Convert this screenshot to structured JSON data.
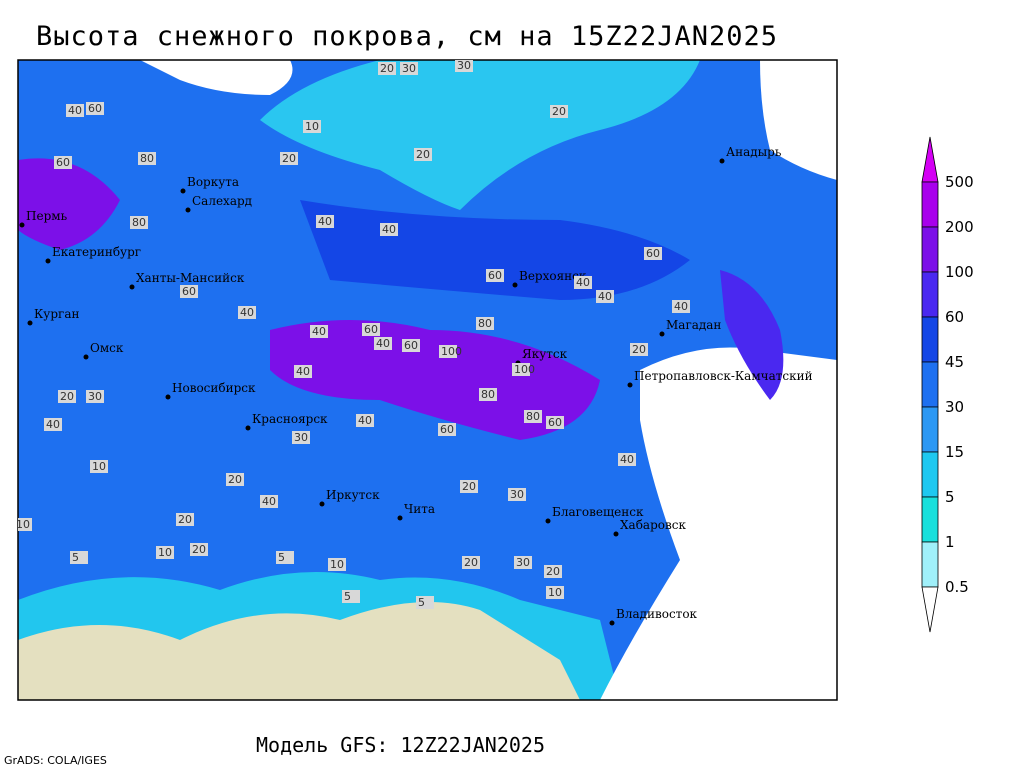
{
  "header": {
    "title": "Высота снежного покрова, см на 15Z22JAN2025"
  },
  "footer": {
    "model": "Модель GFS: 12Z22JAN2025",
    "credit": "GrADS: COLA/IGES"
  },
  "legend": {
    "levels": [
      500,
      200,
      100,
      60,
      45,
      30,
      15,
      5,
      1,
      0.5
    ],
    "colors": [
      "#d400f4",
      "#a800ec",
      "#7c10e8",
      "#4a28f0",
      "#1446e6",
      "#1e70f0",
      "#2c98f4",
      "#1ec8f0",
      "#18e0dc",
      "#a0f0fa",
      "#ffffff"
    ]
  },
  "map": {
    "cities": [
      "Воркута",
      "Салехард",
      "Пермь",
      "Екатеринбург",
      "Ханты-Мансийск",
      "Курган",
      "Омск",
      "Новосибирск",
      "Красноярск",
      "Иркутск",
      "Чита",
      "Верхоянск",
      "Якутск",
      "Магадан",
      "Анадырь",
      "Петропавловск-Камчатский",
      "Благовещенск",
      "Хабаровск",
      "Владивосток"
    ],
    "contour_labels": [
      "20",
      "30",
      "30",
      "20",
      "10",
      "20",
      "20",
      "40",
      "60",
      "80",
      "40",
      "40",
      "40",
      "60",
      "80",
      "60",
      "40",
      "40",
      "60",
      "40",
      "60",
      "80",
      "100",
      "80",
      "60",
      "100",
      "80",
      "60",
      "40",
      "40",
      "60",
      "40",
      "20",
      "30",
      "20",
      "10",
      "20",
      "10",
      "5",
      "10",
      "5",
      "10",
      "20",
      "30",
      "20",
      "10",
      "40",
      "40",
      "30",
      "20",
      "5",
      "5",
      "20",
      "30",
      "40",
      "60",
      "40",
      "20"
    ]
  }
}
